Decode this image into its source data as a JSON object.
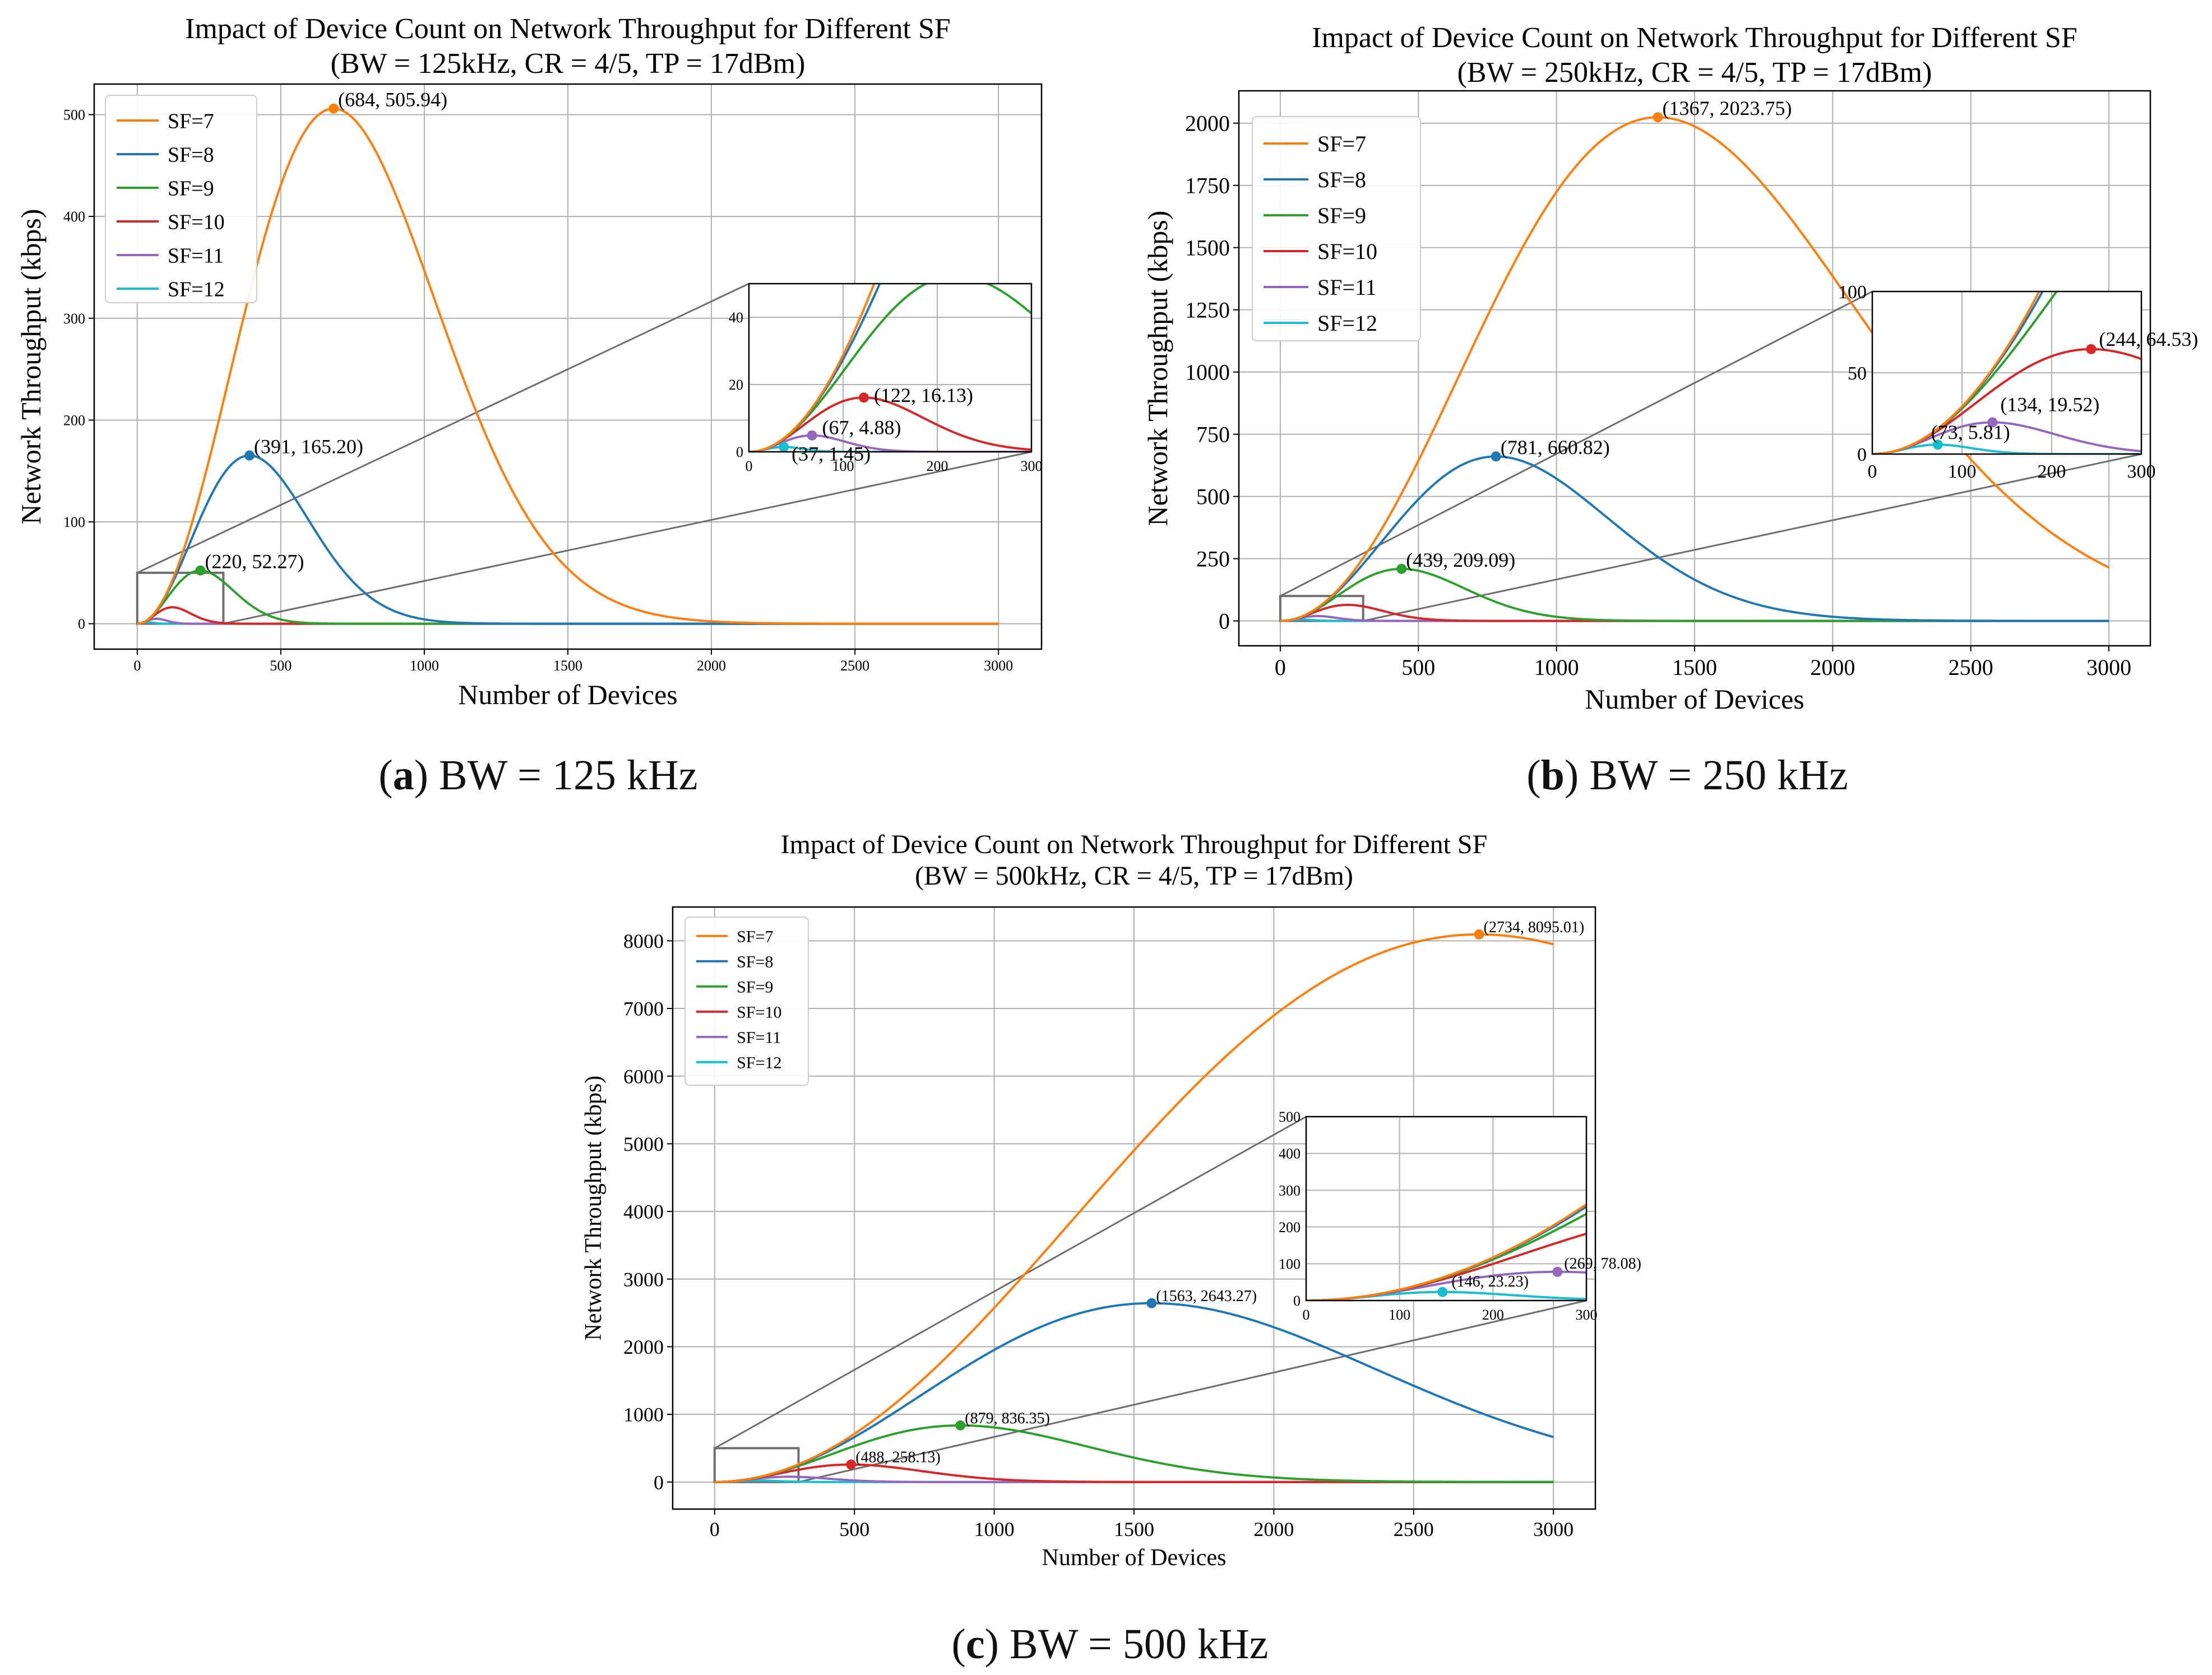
{
  "chart_data": [
    {
      "type": "line",
      "id": "a",
      "title": "Impact of Device Count on Network Throughput for Different SF",
      "subtitle": "(BW = 125kHz, CR = 4/5, TP = 17dBm)",
      "xlabel": "Number of Devices",
      "ylabel": "Network Throughput (kbps)",
      "xlim": [
        -150,
        3150
      ],
      "ylim": [
        -25,
        530
      ],
      "xticks": [
        0,
        500,
        1000,
        1500,
        2000,
        2500,
        3000
      ],
      "yticks": [
        0,
        100,
        200,
        300,
        400,
        500
      ],
      "x_max": 3000,
      "legend_position": "upper-left",
      "series": [
        {
          "name": "SF=7",
          "color": "#ff7f0e",
          "peak_x": 684,
          "peak_y": 505.94,
          "peak_label": "(684, 505.94)"
        },
        {
          "name": "SF=8",
          "color": "#1f77b4",
          "peak_x": 391,
          "peak_y": 165.2,
          "peak_label": "(391, 165.20)"
        },
        {
          "name": "SF=9",
          "color": "#2ca02c",
          "peak_x": 220,
          "peak_y": 52.27,
          "peak_label": "(220, 52.27)"
        },
        {
          "name": "SF=10",
          "color": "#d62728",
          "peak_x": 122,
          "peak_y": 16.13,
          "peak_label": "(122, 16.13)"
        },
        {
          "name": "SF=11",
          "color": "#9467bd",
          "peak_x": 67,
          "peak_y": 4.88,
          "peak_label": "(67, 4.88)"
        },
        {
          "name": "SF=12",
          "color": "#17becf",
          "peak_x": 37,
          "peak_y": 1.45,
          "peak_label": "(37, 1.45)"
        }
      ],
      "inset": {
        "xlim": [
          0,
          300
        ],
        "ylim": [
          0,
          50
        ],
        "xticks": [
          0,
          100,
          200,
          300
        ],
        "yticks": [
          0,
          20,
          40
        ],
        "labelled": [
          "SF=10",
          "SF=11",
          "SF=12"
        ]
      }
    },
    {
      "type": "line",
      "id": "b",
      "title": "Impact of Device Count on Network Throughput for Different SF",
      "subtitle": "(BW = 250kHz, CR = 4/5, TP = 17dBm)",
      "xlabel": "Number of Devices",
      "ylabel": "Network Throughput (kbps)",
      "xlim": [
        -150,
        3150
      ],
      "ylim": [
        -100,
        2130
      ],
      "xticks": [
        0,
        500,
        1000,
        1500,
        2000,
        2500,
        3000
      ],
      "yticks": [
        0,
        250,
        500,
        750,
        1000,
        1250,
        1500,
        1750,
        2000
      ],
      "x_max": 3000,
      "legend_position": "upper-left",
      "series": [
        {
          "name": "SF=7",
          "color": "#ff7f0e",
          "peak_x": 1367,
          "peak_y": 2023.75,
          "peak_label": "(1367, 2023.75)"
        },
        {
          "name": "SF=8",
          "color": "#1f77b4",
          "peak_x": 781,
          "peak_y": 660.82,
          "peak_label": "(781, 660.82)"
        },
        {
          "name": "SF=9",
          "color": "#2ca02c",
          "peak_x": 439,
          "peak_y": 209.09,
          "peak_label": "(439, 209.09)"
        },
        {
          "name": "SF=10",
          "color": "#d62728",
          "peak_x": 244,
          "peak_y": 64.53,
          "peak_label": "(244, 64.53)"
        },
        {
          "name": "SF=11",
          "color": "#9467bd",
          "peak_x": 134,
          "peak_y": 19.52,
          "peak_label": "(134, 19.52)"
        },
        {
          "name": "SF=12",
          "color": "#17becf",
          "peak_x": 73,
          "peak_y": 5.81,
          "peak_label": "(73, 5.81)"
        }
      ],
      "inset": {
        "xlim": [
          0,
          300
        ],
        "ylim": [
          0,
          100
        ],
        "xticks": [
          0,
          100,
          200,
          300
        ],
        "yticks": [
          0,
          50,
          100
        ],
        "labelled": [
          "SF=10",
          "SF=11",
          "SF=12"
        ]
      }
    },
    {
      "type": "line",
      "id": "c",
      "title": "Impact of Device Count on Network Throughput for Different SF",
      "subtitle": "(BW = 500kHz, CR = 4/5, TP = 17dBm)",
      "xlabel": "Number of Devices",
      "ylabel": "Network Throughput (kbps)",
      "xlim": [
        -150,
        3150
      ],
      "ylim": [
        -400,
        8500
      ],
      "xticks": [
        0,
        500,
        1000,
        1500,
        2000,
        2500,
        3000
      ],
      "yticks": [
        0,
        1000,
        2000,
        3000,
        4000,
        5000,
        6000,
        7000,
        8000
      ],
      "x_max": 3000,
      "legend_position": "upper-left",
      "series": [
        {
          "name": "SF=7",
          "color": "#ff7f0e",
          "peak_x": 2734,
          "peak_y": 8095.01,
          "peak_label": "(2734, 8095.01)"
        },
        {
          "name": "SF=8",
          "color": "#1f77b4",
          "peak_x": 1563,
          "peak_y": 2643.27,
          "peak_label": "(1563, 2643.27)"
        },
        {
          "name": "SF=9",
          "color": "#2ca02c",
          "peak_x": 879,
          "peak_y": 836.35,
          "peak_label": "(879, 836.35)"
        },
        {
          "name": "SF=10",
          "color": "#d62728",
          "peak_x": 488,
          "peak_y": 258.13,
          "peak_label": "(488, 258.13)"
        },
        {
          "name": "SF=11",
          "color": "#9467bd",
          "peak_x": 269,
          "peak_y": 78.08,
          "peak_label": "(269, 78.08)"
        },
        {
          "name": "SF=12",
          "color": "#17becf",
          "peak_x": 146,
          "peak_y": 23.23,
          "peak_label": "(146, 23.23)"
        }
      ],
      "inset": {
        "xlim": [
          0,
          300
        ],
        "ylim": [
          0,
          500
        ],
        "xticks": [
          0,
          100,
          200,
          300
        ],
        "yticks": [
          0,
          100,
          200,
          300,
          400,
          500
        ],
        "labelled": [
          "SF=11",
          "SF=12"
        ]
      }
    }
  ],
  "captions": {
    "a": {
      "letter": "a",
      "text": "BW = 125 kHz"
    },
    "b": {
      "letter": "b",
      "text": "BW = 250 kHz"
    },
    "c": {
      "letter": "c",
      "text": "BW = 500 kHz"
    }
  }
}
